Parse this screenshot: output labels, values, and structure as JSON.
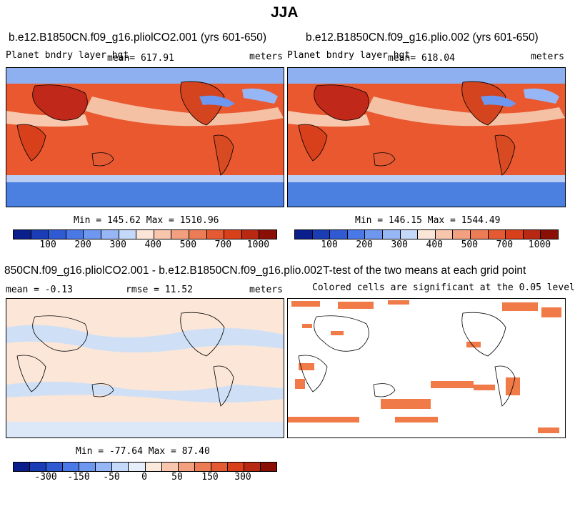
{
  "figure_title": "JJA",
  "panels": {
    "top_left": {
      "title": "b.e12.B1850CN.f09_g16.pliolCO2.001 (yrs 601-650)",
      "variable": "Planet bndry layer hgt",
      "mean": "mean= 617.91",
      "units": "meters",
      "minmax": "Min = 145.62 Max = 1510.96"
    },
    "top_right": {
      "title": "b.e12.B1850CN.f09_g16.plio.002 (yrs 601-650)",
      "variable": "Planet bndry layer hgt",
      "mean": "mean= 618.04",
      "units": "meters",
      "minmax": "Min = 146.15 Max = 1544.49"
    },
    "bottom_left": {
      "title": "850CN.f09_g16.pliolCO2.001 - b.e12.B1850CN.f09_g16.plio.002",
      "mean": "mean = -0.13",
      "rmse": "rmse = 11.52",
      "units": "meters",
      "minmax": "Min = -77.64 Max = 87.40"
    },
    "bottom_right": {
      "title": "T-test of the two means at each grid point",
      "subtitle": "Colored cells are significant at the 0.05 level"
    }
  },
  "colorbars": {
    "absolute": {
      "colors": [
        "#0a1e8c",
        "#1a3cb4",
        "#2f5ad2",
        "#4a78e6",
        "#6e97f0",
        "#97b6f5",
        "#c4d8fa",
        "#fbe5d8",
        "#f8c5ad",
        "#f2a080",
        "#ec7c56",
        "#e45a33",
        "#d8401c",
        "#b82812",
        "#8a1006"
      ],
      "tick_labels": [
        "100",
        "200",
        "300",
        "400",
        "500",
        "700",
        "1000"
      ]
    },
    "difference": {
      "colors": [
        "#0a1e8c",
        "#1a3cb4",
        "#2f5ad2",
        "#4a78e6",
        "#6e97f0",
        "#97b6f5",
        "#c4d8fa",
        "#e6eefb",
        "#fbe9dc",
        "#f8c5ad",
        "#f2a080",
        "#ec7c56",
        "#e45a33",
        "#d8401c",
        "#b82812",
        "#8a1006"
      ],
      "tick_labels": [
        "-300",
        "-150",
        "-50",
        "0",
        "50",
        "150",
        "300"
      ]
    }
  },
  "colors": {
    "ocean_fill": "#e9582f",
    "ocean_fill_alt": "#f08a62",
    "polar_fill": "#4b7fe0",
    "diff_fill": "#fbe6d7",
    "diff_blue": "#cfe0f6",
    "ttest_fill": "#f07a48"
  }
}
